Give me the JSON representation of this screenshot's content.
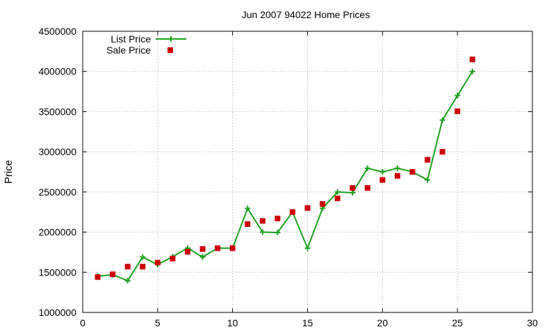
{
  "chart_data": {
    "type": "line",
    "title": "Jun 2007 94022 Home Prices",
    "xlabel": "",
    "ylabel": "Price",
    "xlim": [
      0,
      30
    ],
    "ylim": [
      1000000,
      4500000
    ],
    "xticks": [
      0,
      5,
      10,
      15,
      20,
      25,
      30
    ],
    "yticks": [
      1000000,
      1500000,
      2000000,
      2500000,
      3000000,
      3500000,
      4000000,
      4500000
    ],
    "grid": true,
    "legend_position": "top-left",
    "series": [
      {
        "name": "List Price",
        "style": "line-points",
        "color": "#1aa01a",
        "marker": "plus",
        "x": [
          1,
          2,
          3,
          4,
          5,
          6,
          7,
          8,
          9,
          10,
          11,
          12,
          13,
          14,
          15,
          16,
          17,
          18,
          19,
          20,
          21,
          22,
          23,
          24,
          25,
          26
        ],
        "y": [
          1450000,
          1470000,
          1395000,
          1690000,
          1595000,
          1695000,
          1800000,
          1690000,
          1800000,
          1800000,
          2295000,
          2000000,
          1995000,
          2250000,
          1800000,
          2295000,
          2500000,
          2490000,
          2795000,
          2750000,
          2795000,
          2750000,
          2650000,
          3395000,
          3700000,
          4000000
        ]
      },
      {
        "name": "Sale Price",
        "style": "points",
        "color": "#cc0000",
        "marker": "square",
        "x": [
          1,
          2,
          3,
          4,
          5,
          6,
          7,
          8,
          9,
          10,
          11,
          12,
          13,
          14,
          15,
          16,
          17,
          18,
          19,
          20,
          21,
          22,
          23,
          24,
          25,
          26
        ],
        "y": [
          1440000,
          1475000,
          1570000,
          1570000,
          1620000,
          1670000,
          1755000,
          1790000,
          1800000,
          1800000,
          2100000,
          2140000,
          2170000,
          2250000,
          2300000,
          2350000,
          2420000,
          2550000,
          2550000,
          2650000,
          2700000,
          2750000,
          2900000,
          3000000,
          3505000,
          4150000
        ]
      }
    ]
  }
}
